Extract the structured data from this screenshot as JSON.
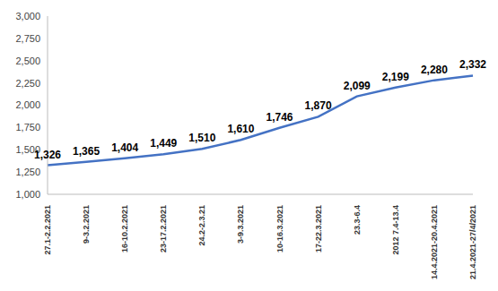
{
  "chart_data": {
    "type": "line",
    "categories": [
      "27.1-2.2.2021",
      "9-3.2.2021",
      "16-10.2.2021",
      "23-17.2.2021",
      "24.2-2.3.21",
      "3-9.3.2021",
      "10-16.3.2021",
      "17-22.3.2021",
      "23.3-6.4",
      "2012 7.4-13.4",
      "14.4.2021-20.4.2021",
      "21.4.2021-27/4/2021"
    ],
    "values": [
      1326,
      1365,
      1404,
      1449,
      1510,
      1610,
      1746,
      1870,
      2099,
      2199,
      2280,
      2332
    ],
    "value_labels": [
      "1,326",
      "1,365",
      "1,404",
      "1,449",
      "1,510",
      "1,610",
      "1,746",
      "1,870",
      "2,099",
      "2,199",
      "2,280",
      "2,332"
    ],
    "color": "#4472c4",
    "ylim": [
      1000,
      3000
    ],
    "yticks": [
      {
        "value": 1000,
        "label": "1,000"
      },
      {
        "value": 1250,
        "label": "1,250"
      },
      {
        "value": 1500,
        "label": "1,500"
      },
      {
        "value": 1750,
        "label": "1,750"
      },
      {
        "value": 2000,
        "label": "2,000"
      },
      {
        "value": 2250,
        "label": "2,250"
      },
      {
        "value": 2500,
        "label": "2,500"
      },
      {
        "value": 2750,
        "label": "2,750"
      },
      {
        "value": 3000,
        "label": "3,000"
      }
    ],
    "grid": false,
    "data_labels": true
  }
}
